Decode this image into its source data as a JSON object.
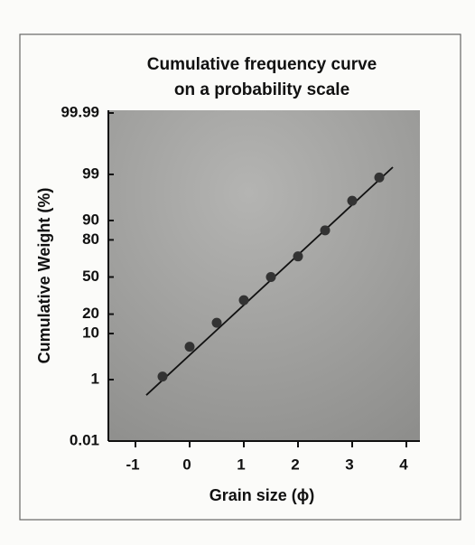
{
  "chart_data": {
    "type": "scatter",
    "title": [
      "Cumulative frequency curve",
      "on a probability scale"
    ],
    "x_label": "Grain size (ϕ)",
    "y_label": "Cumulative Weight (%)",
    "yscale": "probability",
    "x": [
      -0.5,
      0,
      0.5,
      1,
      1.5,
      2,
      2.5,
      3,
      3.5
    ],
    "values": [
      1.2,
      5.7,
      15,
      30,
      50,
      68,
      85.5,
      95.8,
      98.8
    ],
    "color": "#333333",
    "fit_line": {
      "x": [
        -0.8,
        3.75
      ],
      "values": [
        0.37,
        99.36
      ],
      "color": "#111111"
    },
    "xlim": [
      -1.5,
      4.25
    ],
    "xticks": [
      -1,
      0,
      1,
      2,
      3,
      4
    ],
    "ylim": [
      0.01,
      99.99
    ],
    "yticks": [
      0.01,
      1,
      10,
      20,
      50,
      80,
      90,
      99,
      99.99
    ]
  }
}
